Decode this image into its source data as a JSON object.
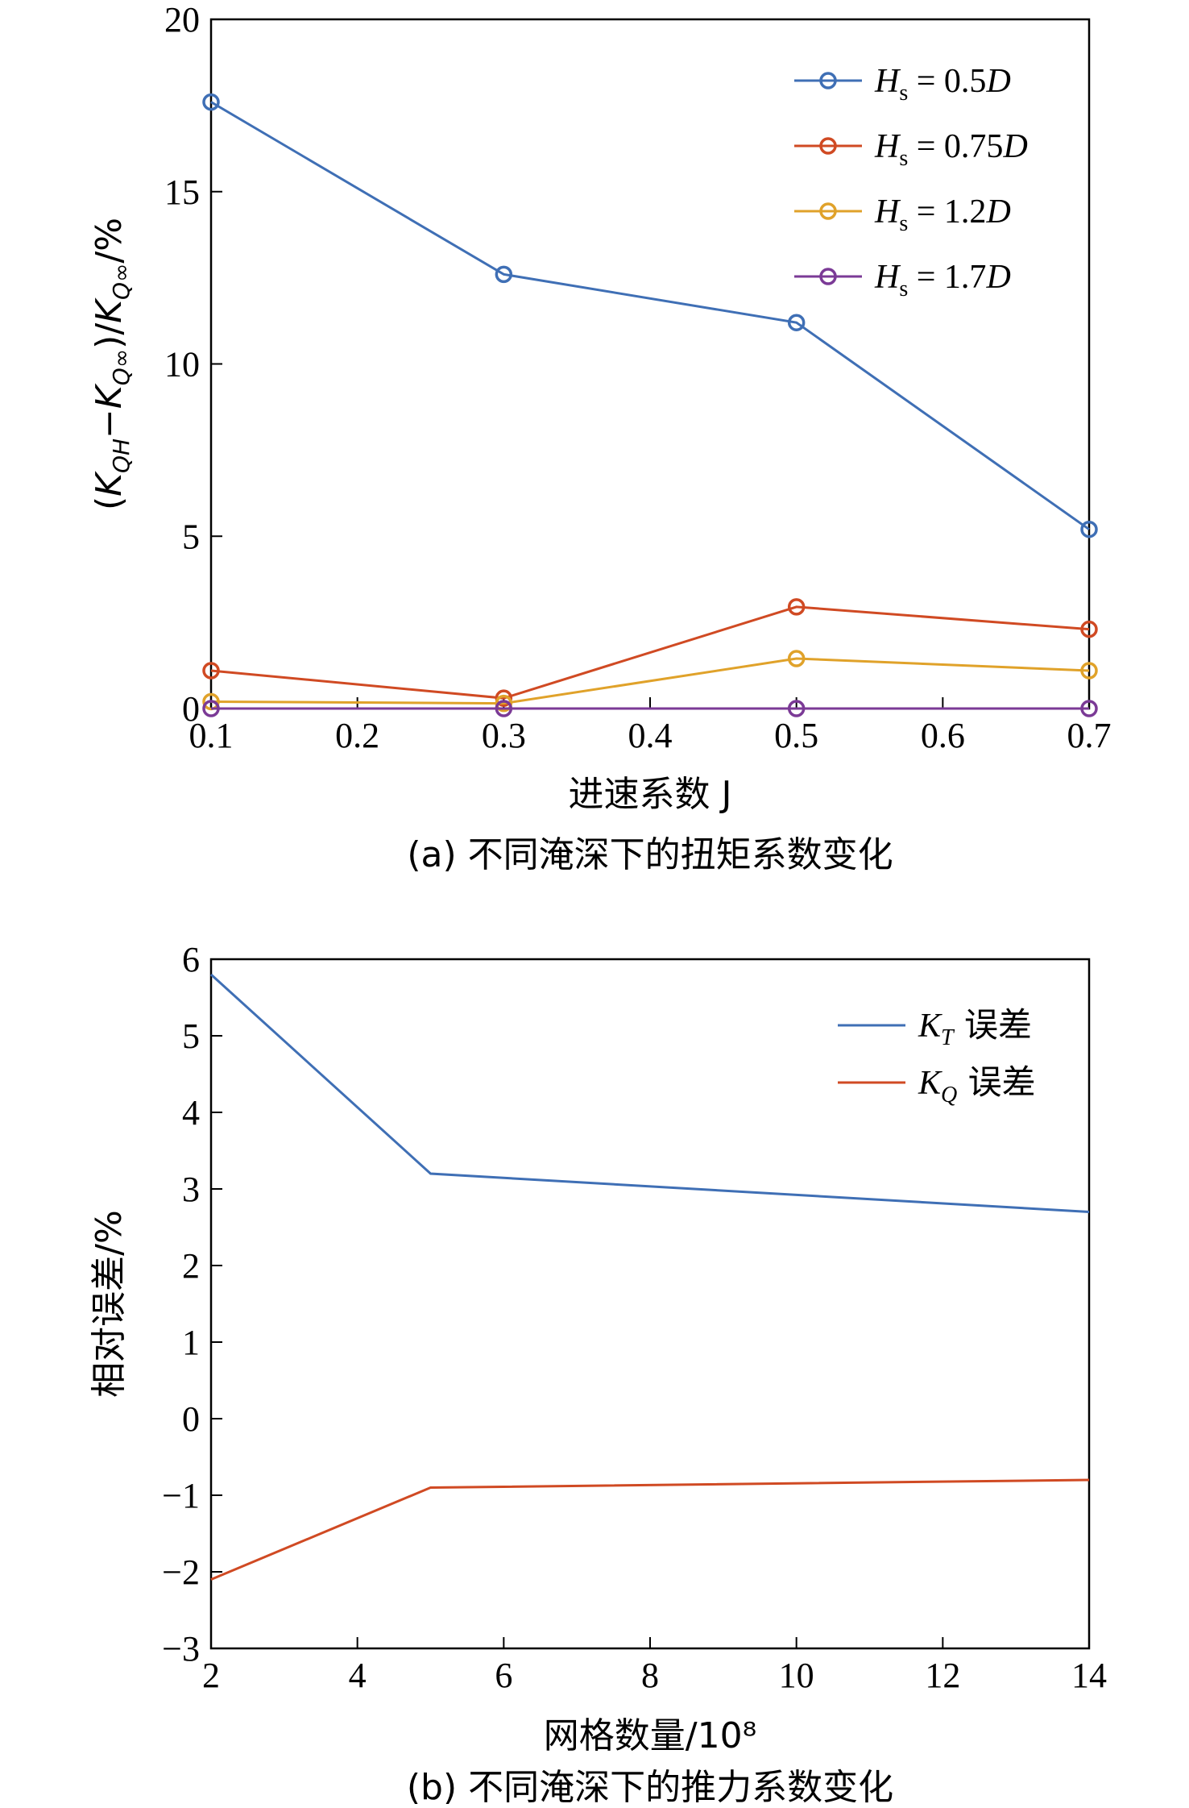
{
  "chart_data": [
    {
      "type": "line",
      "caption": "(a) 不同淹深下的扭矩系数变化",
      "xlabel": "进速系数 J",
      "ylabel": "(KQH−KQ∞)/KQ∞/%",
      "x": [
        0.1,
        0.3,
        0.5,
        0.7
      ],
      "xlim": [
        0.1,
        0.7
      ],
      "ylim": [
        0,
        20
      ],
      "xticks": [
        "0.1",
        "0.2",
        "0.3",
        "0.4",
        "0.5",
        "0.6",
        "0.7"
      ],
      "yticks": [
        "0",
        "5",
        "10",
        "15",
        "20"
      ],
      "markers": true,
      "legend_position": "top-right",
      "series": [
        {
          "name": "Hs = 0.5D",
          "color": "#3f6fb5",
          "values": [
            17.6,
            12.6,
            11.2,
            5.2
          ]
        },
        {
          "name": "Hs = 0.75D",
          "color": "#d04a23",
          "values": [
            1.1,
            0.3,
            2.95,
            2.3
          ]
        },
        {
          "name": "Hs = 1.2D",
          "color": "#e0a22a",
          "values": [
            0.2,
            0.15,
            1.45,
            1.1
          ]
        },
        {
          "name": "Hs = 1.7D",
          "color": "#7b3a96",
          "values": [
            0.0,
            0.0,
            0.0,
            0.0
          ]
        }
      ]
    },
    {
      "type": "line",
      "caption": "(b) 不同淹深下的推力系数变化",
      "xlabel": "网格数量/10⁸",
      "ylabel": "相对误差/%",
      "x": [
        2,
        5,
        14
      ],
      "xlim": [
        2,
        14
      ],
      "ylim": [
        -3,
        6
      ],
      "xticks": [
        "2",
        "4",
        "6",
        "8",
        "10",
        "12",
        "14"
      ],
      "yticks": [
        "−3",
        "−2",
        "−1",
        "0",
        "1",
        "2",
        "3",
        "4",
        "5",
        "6"
      ],
      "markers": false,
      "legend_position": "top-right",
      "series": [
        {
          "name": "KT 误差",
          "color": "#3f6fb5",
          "values": [
            5.8,
            3.2,
            2.7
          ]
        },
        {
          "name": "KQ 误差",
          "color": "#d04a23",
          "values": [
            -2.1,
            -0.9,
            -0.8
          ]
        }
      ]
    }
  ]
}
